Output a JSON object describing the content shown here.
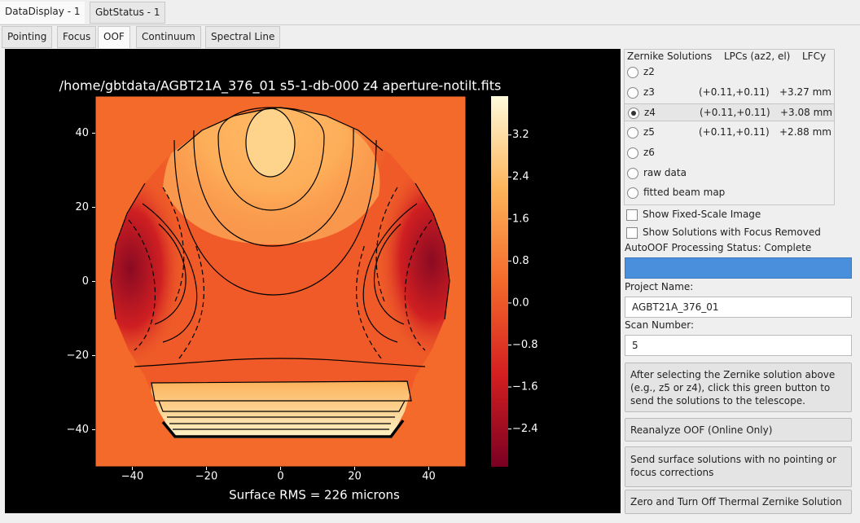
{
  "tabs": [
    "DataDisplay - 1",
    "GbtStatus - 1"
  ],
  "subtabs": [
    "Pointing",
    "Focus",
    "OOF",
    "Continuum",
    "Spectral Line"
  ],
  "chart_data": {
    "type": "heatmap",
    "title": "/home/gbtdata/AGBT21A_376_01 s5-1-db-000 z4 aperture-notilt.fits",
    "xlabel": "Surface RMS = 226 microns",
    "xlim": [
      -50,
      50
    ],
    "ylim": [
      -50,
      50
    ],
    "xticks": [
      {
        "value": -40,
        "label": "−40"
      },
      {
        "value": -20,
        "label": "−20"
      },
      0,
      20,
      40
    ],
    "yticks": [
      40,
      20,
      0,
      {
        "value": -20,
        "label": "−20"
      },
      {
        "value": -40,
        "label": "−40"
      }
    ],
    "colorbar": {
      "clim": [
        -3.12,
        3.94
      ],
      "ticks": [
        3.2,
        2.4,
        1.6,
        0.8,
        {
          "value": 0,
          "label": "0.0"
        },
        {
          "value": -0.8,
          "label": "−0.8"
        },
        {
          "value": -1.6,
          "label": "−1.6"
        },
        {
          "value": -2.4,
          "label": "−2.4"
        }
      ],
      "colormap": [
        "#7a0022",
        "#d41f20",
        "#f46a2b",
        "#fdb45a",
        "#fffbdc"
      ]
    }
  },
  "zernike": {
    "headers": [
      "Zernike Solutions",
      "LPCs (az2, el)",
      "LFCy"
    ],
    "selected": 2,
    "rows": [
      {
        "label": "z2"
      },
      {
        "label": "z3",
        "lpc": "(+0.11,+0.11)",
        "lfcy": "+3.27 mm"
      },
      {
        "label": "z4",
        "lpc": "(+0.11,+0.11)",
        "lfcy": "+3.08 mm"
      },
      {
        "label": "z5",
        "lpc": "(+0.11,+0.11)",
        "lfcy": "+2.88 mm"
      },
      {
        "label": "z6"
      },
      {
        "label": "raw data"
      },
      {
        "label": "fitted beam map"
      }
    ]
  },
  "checkboxes": [
    "Show Fixed-Scale Image",
    "Show Solutions with Focus Removed"
  ],
  "status": "AutoOOF Processing Status: Complete",
  "project_label": "Project Name:",
  "project": "AGBT21A_376_01",
  "scan_label": "Scan Number:",
  "scan": "5",
  "buttons": [
    "After selecting the Zernike solution above (e.g., z5 or z4), click this green button to send the solutions to the telescope.",
    "Reanalyze OOF (Online Only)",
    "Send surface solutions with no pointing or focus corrections",
    "Zero and Turn Off Thermal Zernike Solution"
  ]
}
